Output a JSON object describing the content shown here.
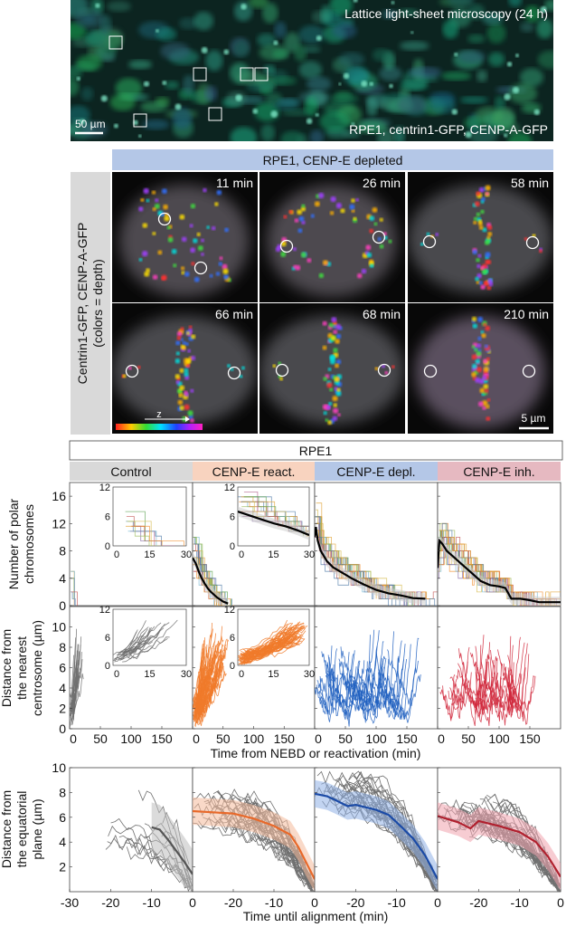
{
  "top_image": {
    "title": "Lattice light-sheet microscopy (24 h)",
    "subtitle": "RPE1, centrin1-GFP, CENP-A-GFP",
    "scale_bar": "50 µm"
  },
  "montage": {
    "header": "RPE1, CENP-E depleted",
    "header_color": "#b4c7e7",
    "side_label_line1": "Centrin1-GFP, CENP-A-GFP",
    "side_label_line2": "(colors = depth)",
    "frames": [
      {
        "time": "11 min"
      },
      {
        "time": "26 min"
      },
      {
        "time": "58 min"
      },
      {
        "time": "66 min"
      },
      {
        "time": "68 min"
      },
      {
        "time": "210 min"
      }
    ],
    "depth_axis": "z",
    "scale_bar": "5 µm"
  },
  "plots": {
    "title": "RPE1",
    "conditions": [
      {
        "label": "Control",
        "header_color": "#d9d9d9",
        "trace_color": "#6f6f6f",
        "mean_color": "#555555",
        "band_color": "#bdbdbd"
      },
      {
        "label": "CENP-E react.",
        "header_color": "#f8d3bf",
        "trace_color": "#f07a2a",
        "mean_color": "#e8692a",
        "band_color": "#f4b99a"
      },
      {
        "label": "CENP-E depl.",
        "header_color": "#b4c7e7",
        "trace_color": "#1f5fbf",
        "mean_color": "#1a4aa6",
        "band_color": "#8fb0e6"
      },
      {
        "label": "CENP-E inh.",
        "header_color": "#e6b9c1",
        "trace_color": "#d0263a",
        "mean_color": "#b0202e",
        "band_color": "#f0a3ad"
      }
    ],
    "row1_ylabel": [
      "Number of polar",
      "chromosomes"
    ],
    "row2_ylabel": [
      "Distance from",
      "the nearest",
      "centrosome (µm)"
    ],
    "row12_xlabel": "Time from NEBD or reactivation (min)",
    "row3_ylabel": [
      "Distance from",
      "the equatorial",
      "plane (µm)"
    ],
    "row3_xlabel": "Time until alignment (min)"
  },
  "chart_data": [
    {
      "type": "line",
      "row": "polar chromosomes",
      "ylabel": "Number of polar chromosomes",
      "xlabel": "Time from NEBD or reactivation (min)",
      "xlim": [
        0,
        200
      ],
      "ylim": [
        0,
        18
      ],
      "yticks": [
        "0",
        "4",
        "8",
        "12",
        "16"
      ],
      "yticks_values": [
        0,
        4,
        8,
        12,
        16
      ],
      "panels": [
        {
          "condition": "Control",
          "mean": null,
          "inset": {
            "xlim": [
              0,
              30
            ],
            "ylim": [
              0,
              12
            ],
            "xticks": [
              "0",
              "15",
              "30"
            ],
            "yticks": [
              "0",
              "6",
              "12"
            ],
            "mean": null
          }
        },
        {
          "condition": "CENP-E react.",
          "mean": {
            "x": [
              0,
              5,
              10,
              15,
              20,
              25,
              30,
              40,
              50,
              58
            ],
            "y": [
              7,
              6.2,
              5,
              4,
              3.2,
              2.5,
              2,
              1.2,
              0.6,
              0.3
            ]
          },
          "inset": {
            "xlim": [
              0,
              30
            ],
            "ylim": [
              0,
              12
            ],
            "xticks": [
              "0",
              "15",
              "30"
            ],
            "yticks": [
              "0",
              "6",
              "12"
            ],
            "mean": {
              "x": [
                0,
                5,
                10,
                15,
                20,
                25,
                30
              ],
              "y": [
                7,
                6.2,
                5.4,
                4.6,
                4,
                3.2,
                2.2
              ]
            }
          }
        },
        {
          "condition": "CENP-E depl.",
          "mean": {
            "x": [
              0,
              2,
              5,
              10,
              20,
              30,
              45,
              60,
              80,
              100,
              120,
              140,
              160,
              180
            ],
            "y": [
              10,
              11.5,
              9.5,
              8,
              6.5,
              5.6,
              4.8,
              4,
              3.1,
              2.3,
              1.8,
              1.5,
              1.1,
              1
            ]
          }
        },
        {
          "condition": "CENP-E inh.",
          "mean": {
            "x": [
              0,
              3,
              8,
              15,
              25,
              40,
              55,
              70,
              85,
              100,
              110,
              120,
              135,
              150,
              165,
              180,
              200
            ],
            "y": [
              5.5,
              9.5,
              9,
              8,
              7.2,
              6,
              4.8,
              3.6,
              3,
              2.8,
              2.6,
              1,
              1,
              0.8,
              0.5,
              0.5,
              0.5
            ]
          }
        }
      ]
    },
    {
      "type": "line",
      "row": "distance from nearest centrosome",
      "ylabel": "Distance from the nearest centrosome (µm)",
      "xlabel": "Time from NEBD or reactivation (min)",
      "xlim": [
        0,
        200
      ],
      "ylim": [
        0,
        12
      ],
      "xticks": [
        "0",
        "50",
        "100",
        "150"
      ],
      "xticks_values": [
        0,
        50,
        100,
        150
      ],
      "yticks": [
        "0",
        "2",
        "4",
        "6",
        "8",
        "10"
      ],
      "yticks_values": [
        0,
        2,
        4,
        6,
        8,
        10
      ],
      "panels": [
        {
          "condition": "Control",
          "inset": {
            "xlim": [
              0,
              30
            ],
            "ylim": [
              0,
              12
            ],
            "xticks": [
              "0",
              "15",
              "30"
            ],
            "yticks": [
              "0",
              "6",
              "12"
            ]
          }
        },
        {
          "condition": "CENP-E react.",
          "inset": {
            "xlim": [
              0,
              30
            ],
            "ylim": [
              0,
              12
            ],
            "xticks": [
              "0",
              "15",
              "30"
            ],
            "yticks": [
              "0",
              "6",
              "12"
            ]
          }
        },
        {
          "condition": "CENP-E depl."
        },
        {
          "condition": "CENP-E inh."
        }
      ]
    },
    {
      "type": "line",
      "row": "distance from equatorial plane",
      "ylabel": "Distance from the equatorial plane (µm)",
      "xlabel": "Time until alignment (min)",
      "xlim": [
        -30,
        0
      ],
      "ylim": [
        0,
        10
      ],
      "xticks_first": [
        "-30",
        "-20",
        "-10",
        "0"
      ],
      "xticks_other": [
        "-20",
        "-10",
        "0"
      ],
      "yticks": [
        "2",
        "4",
        "6",
        "8",
        "10"
      ],
      "yticks_values": [
        2,
        4,
        6,
        8,
        10
      ],
      "panels": [
        {
          "condition": "Control",
          "mean": {
            "x": [
              -10,
              -8,
              -6,
              -4,
              -2,
              0
            ],
            "y": [
              5.2,
              5,
              4.2,
              3.3,
              2.4,
              1.4
            ]
          }
        },
        {
          "condition": "CENP-E react.",
          "mean": {
            "x": [
              -30,
              -25,
              -20,
              -15,
              -10,
              -6,
              -4,
              -2,
              0
            ],
            "y": [
              6.5,
              6.4,
              6.3,
              5.9,
              5.3,
              4.6,
              3.6,
              2.3,
              1
            ]
          }
        },
        {
          "condition": "CENP-E depl.",
          "mean": {
            "x": [
              -30,
              -27,
              -25,
              -22,
              -20,
              -15,
              -12,
              -10,
              -6,
              -3,
              0
            ],
            "y": [
              7.9,
              7.7,
              7.4,
              6.9,
              7,
              6.6,
              6.2,
              5.6,
              4.3,
              2.9,
              1
            ]
          }
        },
        {
          "condition": "CENP-E inh.",
          "mean": {
            "x": [
              -30,
              -25,
              -22,
              -20,
              -15,
              -10,
              -6,
              -3,
              0
            ],
            "y": [
              6.1,
              5.6,
              5.1,
              5.7,
              5.3,
              4.8,
              4,
              2.8,
              1.2
            ]
          }
        }
      ]
    }
  ]
}
